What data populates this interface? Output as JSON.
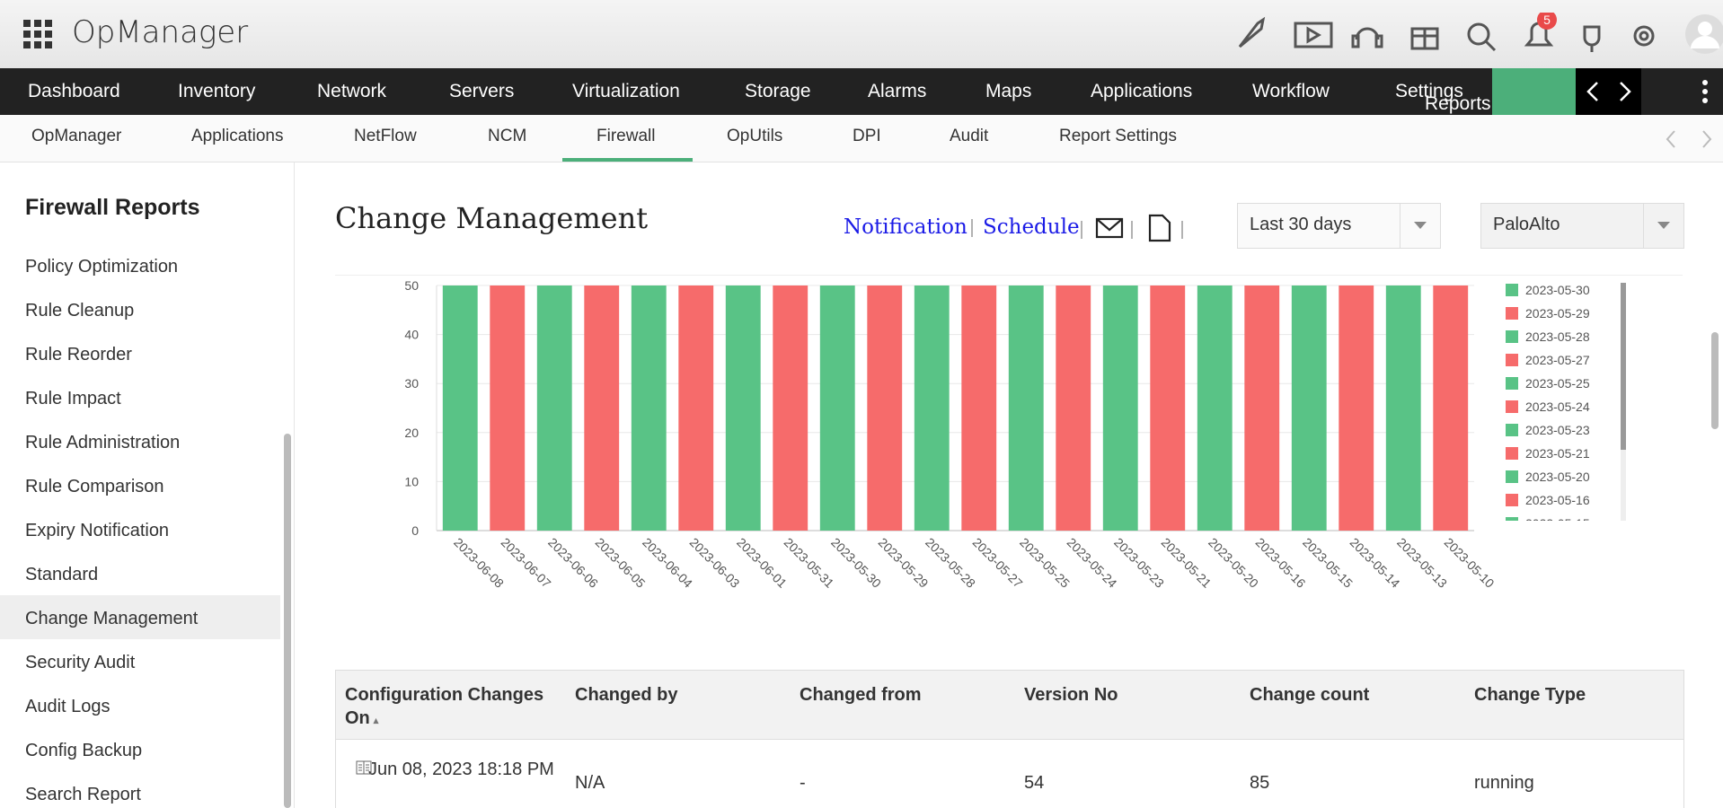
{
  "header": {
    "app_name": "OpManager",
    "notification_count": "5"
  },
  "nav": [
    "Dashboard",
    "Inventory",
    "Network",
    "Servers",
    "Virtualization",
    "Storage",
    "Alarms",
    "Maps",
    "Applications",
    "Workflow",
    "Settings",
    "Reports"
  ],
  "subnav": [
    "OpManager",
    "Applications",
    "NetFlow",
    "NCM",
    "Firewall",
    "OpUtils",
    "DPI",
    "Audit",
    "Report Settings"
  ],
  "sidebar": {
    "title": "Firewall Reports",
    "items": [
      "Policy Optimization",
      "Rule Cleanup",
      "Rule Reorder",
      "Rule Impact",
      "Rule Administration",
      "Rule Comparison",
      "Expiry Notification",
      "Standard",
      "Change Management",
      "Security Audit",
      "Audit Logs",
      "Config Backup",
      "Search Report"
    ]
  },
  "content": {
    "title": "Change Management",
    "links": [
      "Notification",
      "Schedule"
    ],
    "period": "Last 30 days",
    "device": "PaloAlto"
  },
  "chart_data": {
    "type": "bar",
    "categories": [
      "2023-06-08",
      "2023-06-07",
      "2023-06-06",
      "2023-06-05",
      "2023-06-04",
      "2023-06-03",
      "2023-06-01",
      "2023-05-31",
      "2023-05-30",
      "2023-05-29",
      "2023-05-28",
      "2023-05-27",
      "2023-05-25",
      "2023-05-24",
      "2023-05-23",
      "2023-05-21",
      "2023-05-20",
      "2023-05-16",
      "2023-05-15",
      "2023-05-14",
      "2023-05-13",
      "2023-05-10"
    ],
    "values": [
      50,
      50,
      50,
      50,
      50,
      50,
      50,
      50,
      50,
      50,
      50,
      50,
      50,
      50,
      50,
      50,
      50,
      50,
      50,
      50,
      50,
      50
    ],
    "colors": [
      "#59c386",
      "#f66b6b"
    ],
    "ylim": [
      0,
      50
    ],
    "yticks": [
      0,
      10,
      20,
      30,
      40,
      50
    ],
    "grid": true,
    "legend": "right"
  },
  "table": {
    "headers": [
      "Configuration Changes On",
      "Changed by",
      "Changed from",
      "Version No",
      "Change count",
      "Change Type"
    ],
    "rows": [
      [
        "Jun 08, 2023 18:18 PM",
        "N/A",
        "-",
        "54",
        "85",
        "running"
      ]
    ]
  }
}
